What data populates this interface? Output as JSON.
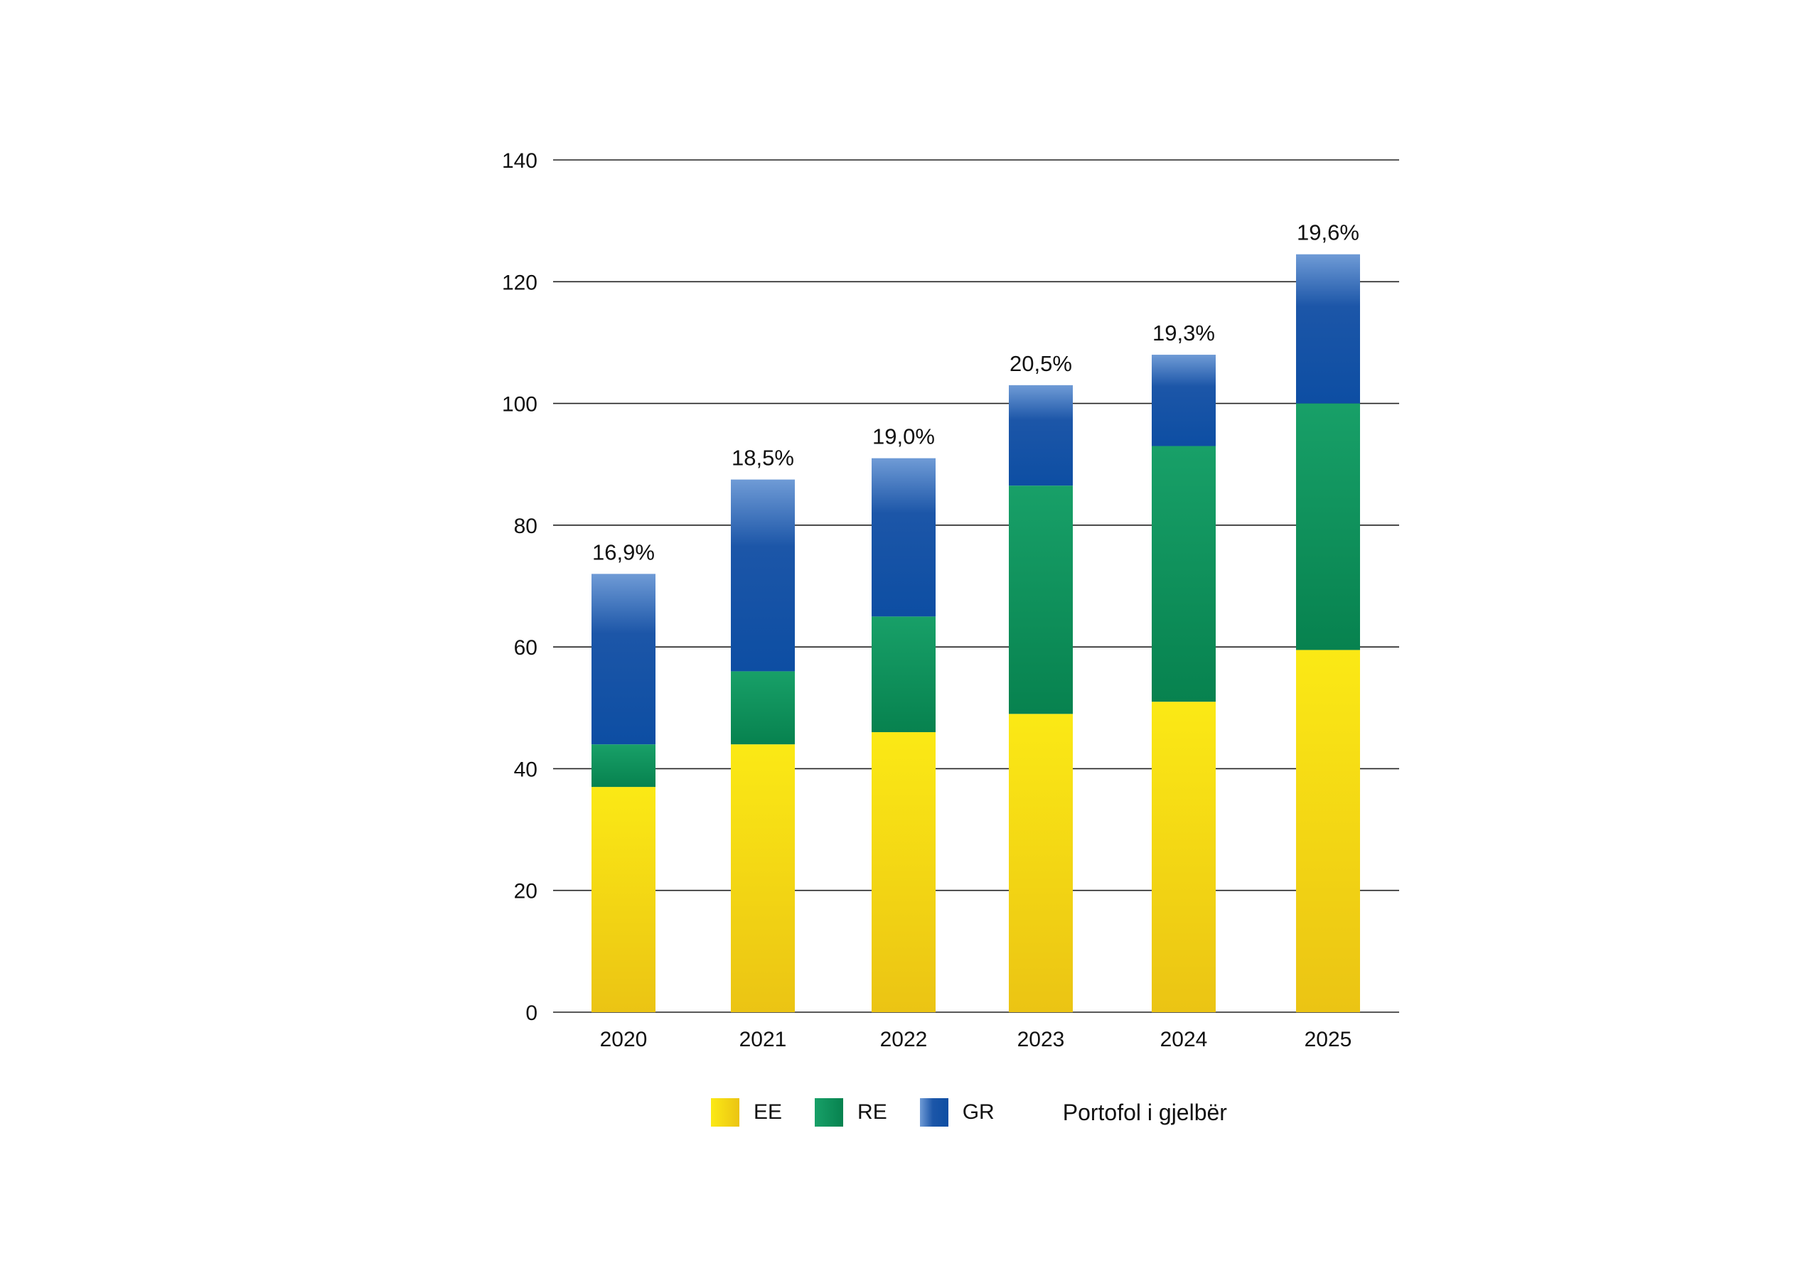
{
  "chart_data": {
    "type": "bar",
    "stacked": true,
    "categories": [
      "2020",
      "2021",
      "2022",
      "2023",
      "2024",
      "2025"
    ],
    "series": [
      {
        "name": "EE",
        "values": [
          37,
          44,
          46,
          49,
          51,
          59.5
        ],
        "color": "#f5dc10"
      },
      {
        "name": "RE",
        "values": [
          7,
          12,
          19,
          37.5,
          42,
          40.5
        ],
        "color": "#0f9158"
      },
      {
        "name": "GR",
        "values": [
          28,
          31.5,
          26,
          16.5,
          15,
          24.5
        ],
        "color": "#1553a6"
      }
    ],
    "bar_labels": [
      "16,9%",
      "18,5%",
      "19,0%",
      "20,5%",
      "19,3%",
      "19,6%"
    ],
    "ylim": [
      0,
      140
    ],
    "yticks": [
      0,
      20,
      40,
      60,
      80,
      100,
      120,
      140
    ],
    "grid": true,
    "legend_position": "bottom",
    "legend_note": "Portofol i gjelbër",
    "title": "",
    "xlabel": "",
    "ylabel": ""
  }
}
